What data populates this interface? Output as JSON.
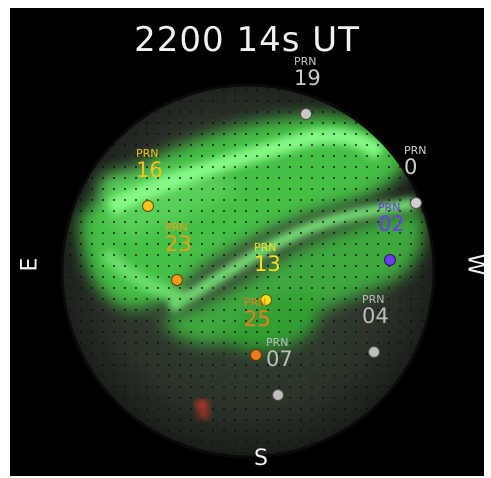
{
  "title": "2200 14s UT",
  "directions": {
    "east": "E",
    "west": "W",
    "south": "S"
  },
  "satellites": [
    {
      "prn_label": "PRN",
      "id": "19",
      "color": "#c9c9c9"
    },
    {
      "prn_label": "PRN",
      "id": "16",
      "color": "#f3c21b"
    },
    {
      "prn_label": "PRN",
      "id": "0",
      "color": "#d0d0d0"
    },
    {
      "prn_label": "PRN",
      "id": "02",
      "color": "#6b3cf0"
    },
    {
      "prn_label": "PRN",
      "id": "23",
      "color": "#f39a1b"
    },
    {
      "prn_label": "PRN",
      "id": "13",
      "color": "#f6e01a"
    },
    {
      "prn_label": "PRN",
      "id": "25",
      "color": "#f07a1a"
    },
    {
      "prn_label": "PRN",
      "id": "07",
      "color": "#bdbdbd"
    },
    {
      "prn_label": "PRN",
      "id": "04",
      "color": "#bdbdbd"
    }
  ],
  "colors": {
    "aurora": "#48d848",
    "background": "#000000",
    "label_text": "#f2f2f2"
  }
}
